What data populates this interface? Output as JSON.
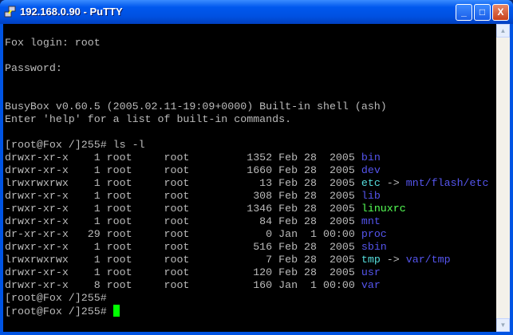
{
  "window": {
    "title": "192.168.0.90 - PuTTY",
    "minimize": "_",
    "maximize": "□",
    "close": "X"
  },
  "colors": {
    "text": "#bbbbbb",
    "dir": "#5555ee",
    "link": "#55dddd",
    "exec": "#55ff55",
    "cursor": "#00ff00"
  },
  "terminal": {
    "lines": [
      [],
      [
        {
          "t": "Fox login: root"
        }
      ],
      [],
      [
        {
          "t": "Password:"
        }
      ],
      [],
      [],
      [
        {
          "t": "BusyBox v0.60.5 (2005.02.11-19:09+0000) Built-in shell (ash)"
        }
      ],
      [
        {
          "t": "Enter 'help' for a list of built-in commands."
        }
      ],
      [],
      [
        {
          "t": "[root@Fox /]255# ls -l"
        }
      ],
      [
        {
          "t": "drwxr-xr-x    1 root     root         1352 Feb 28  2005 "
        },
        {
          "t": "bin",
          "c": "blue"
        }
      ],
      [
        {
          "t": "drwxr-xr-x    1 root     root         1660 Feb 28  2005 "
        },
        {
          "t": "dev",
          "c": "blue"
        }
      ],
      [
        {
          "t": "lrwxrwxrwx    1 root     root           13 Feb 28  2005 "
        },
        {
          "t": "etc",
          "c": "cyan"
        },
        {
          "t": " -> "
        },
        {
          "t": "mnt/flash/etc",
          "c": "blue"
        }
      ],
      [
        {
          "t": "drwxr-xr-x    1 root     root          308 Feb 28  2005 "
        },
        {
          "t": "lib",
          "c": "blue"
        }
      ],
      [
        {
          "t": "-rwxr-xr-x    1 root     root         1346 Feb 28  2005 "
        },
        {
          "t": "linuxrc",
          "c": "green"
        }
      ],
      [
        {
          "t": "drwxr-xr-x    1 root     root           84 Feb 28  2005 "
        },
        {
          "t": "mnt",
          "c": "blue"
        }
      ],
      [
        {
          "t": "dr-xr-xr-x   29 root     root            0 Jan  1 00:00 "
        },
        {
          "t": "proc",
          "c": "blue"
        }
      ],
      [
        {
          "t": "drwxr-xr-x    1 root     root          516 Feb 28  2005 "
        },
        {
          "t": "sbin",
          "c": "blue"
        }
      ],
      [
        {
          "t": "lrwxrwxrwx    1 root     root            7 Feb 28  2005 "
        },
        {
          "t": "tmp",
          "c": "cyan"
        },
        {
          "t": " -> "
        },
        {
          "t": "var/tmp",
          "c": "blue"
        }
      ],
      [
        {
          "t": "drwxr-xr-x    1 root     root          120 Feb 28  2005 "
        },
        {
          "t": "usr",
          "c": "blue"
        }
      ],
      [
        {
          "t": "drwxr-xr-x    8 root     root          160 Jan  1 00:00 "
        },
        {
          "t": "var",
          "c": "blue"
        }
      ],
      [
        {
          "t": "[root@Fox /]255#"
        }
      ],
      [
        {
          "t": "[root@Fox /]255# "
        }
      ]
    ]
  }
}
